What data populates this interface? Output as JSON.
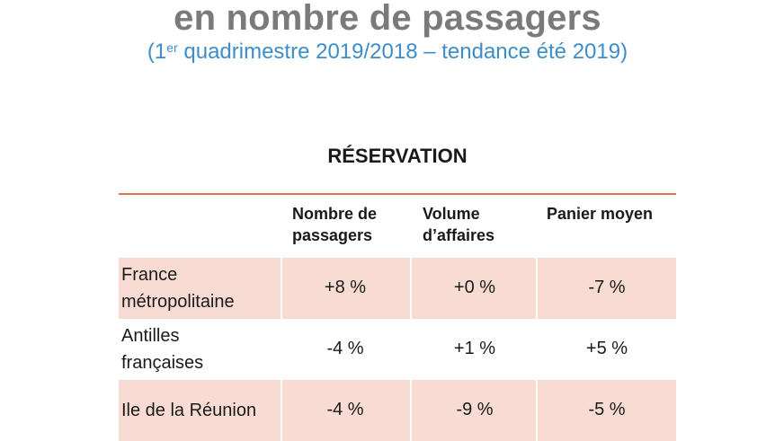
{
  "header": {
    "title": "en nombre de passagers",
    "subtitle_prefix": "(1",
    "subtitle_sup": "er",
    "subtitle_rest": " quadrimestre 2019/2018 – tendance été 2019)"
  },
  "table": {
    "title": "RÉSERVATION",
    "columns": [
      {
        "line1": "Nombre de",
        "line2": "passagers"
      },
      {
        "line1": "Volume",
        "line2": "d’affaires"
      },
      {
        "line1": "Panier moyen",
        "line2": ""
      }
    ],
    "rows": [
      {
        "label_line1": "France",
        "label_line2": "métropolitaine",
        "values": [
          "+8 %",
          "+0 %",
          "-7 %"
        ]
      },
      {
        "label_line1": "Antilles",
        "label_line2": "françaises",
        "values": [
          "-4 %",
          "+1 %",
          "+5 %"
        ]
      },
      {
        "label_line1": "Ile de la Réunion",
        "label_line2": "",
        "values": [
          "-4 %",
          "-9 %",
          "-5 %"
        ]
      }
    ]
  },
  "colors": {
    "title": "#7a7a7a",
    "subtitle": "#3d8ec8",
    "rule": "#d87b54",
    "row_shade": "#f8dcd3"
  }
}
